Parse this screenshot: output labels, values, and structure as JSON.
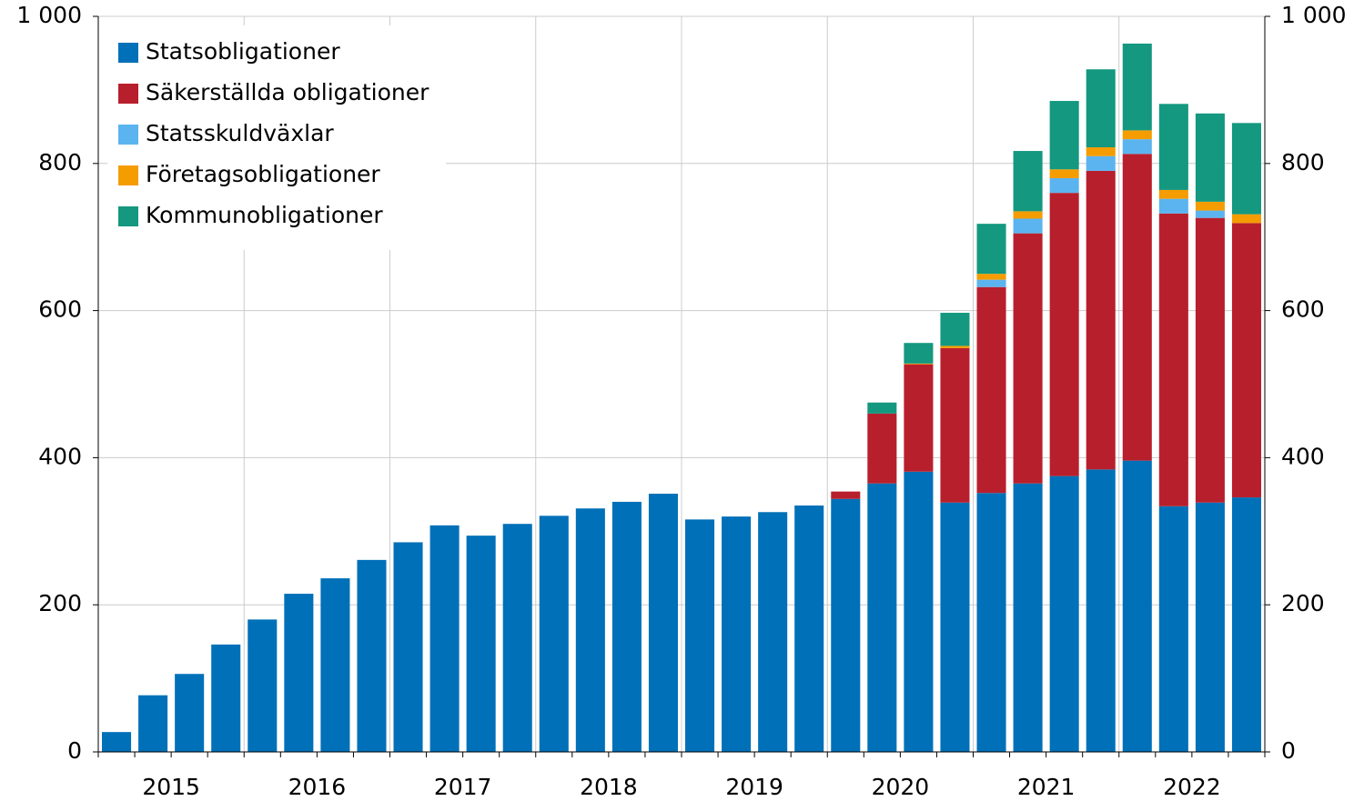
{
  "chart_data": {
    "type": "stacked_bar",
    "categories": [
      "2015",
      null,
      null,
      null,
      "2016",
      null,
      null,
      null,
      "2017",
      null,
      null,
      null,
      "2018",
      null,
      null,
      null,
      "2019",
      null,
      null,
      null,
      "2020",
      null,
      null,
      null,
      "2021",
      null,
      null,
      null,
      "2022",
      null,
      null,
      null
    ],
    "series": [
      {
        "name": "Statsobligationer",
        "color": "#0070b8",
        "values": [
          27,
          77,
          106,
          146,
          180,
          215,
          236,
          261,
          285,
          308,
          294,
          310,
          321,
          331,
          340,
          351,
          316,
          320,
          326,
          335,
          344,
          365,
          381,
          339,
          352,
          365,
          375,
          384,
          396,
          334,
          339,
          346
        ]
      },
      {
        "name": "Säkerställda obligationer",
        "color": "#b81f2c",
        "values": [
          0,
          0,
          0,
          0,
          0,
          0,
          0,
          0,
          0,
          0,
          0,
          0,
          0,
          0,
          0,
          0,
          0,
          0,
          0,
          0,
          10,
          95,
          146,
          210,
          280,
          340,
          385,
          406,
          417,
          398,
          387,
          373
        ]
      },
      {
        "name": "Statsskuldväxlar",
        "color": "#5bb4ef",
        "values": [
          0,
          0,
          0,
          0,
          0,
          0,
          0,
          0,
          0,
          0,
          0,
          0,
          0,
          0,
          0,
          0,
          0,
          0,
          0,
          0,
          0,
          0,
          0,
          0,
          10,
          20,
          20,
          20,
          20,
          20,
          10,
          0
        ]
      },
      {
        "name": "Företagsobligationer",
        "color": "#f59c00",
        "values": [
          0,
          0,
          0,
          0,
          0,
          0,
          0,
          0,
          0,
          0,
          0,
          0,
          0,
          0,
          0,
          0,
          0,
          0,
          0,
          0,
          0,
          0,
          1,
          3,
          8,
          10,
          12,
          12,
          12,
          12,
          12,
          12
        ]
      },
      {
        "name": "Kommunobligationer",
        "color": "#14987f",
        "values": [
          0,
          0,
          0,
          0,
          0,
          0,
          0,
          0,
          0,
          0,
          0,
          0,
          0,
          0,
          0,
          0,
          0,
          0,
          0,
          0,
          0,
          15,
          28,
          45,
          68,
          82,
          93,
          106,
          118,
          117,
          120,
          124
        ]
      }
    ],
    "ylim": [
      0,
      1000
    ],
    "yticks": [
      0,
      200,
      400,
      600,
      800,
      {
        "value": 1000,
        "label": "1 000"
      }
    ],
    "y2lim": [
      0,
      1000
    ],
    "y2ticks": [
      0,
      200,
      400,
      600,
      800,
      {
        "value": 1000,
        "label": "1 000"
      }
    ],
    "grid": true,
    "legend": "upper left"
  }
}
